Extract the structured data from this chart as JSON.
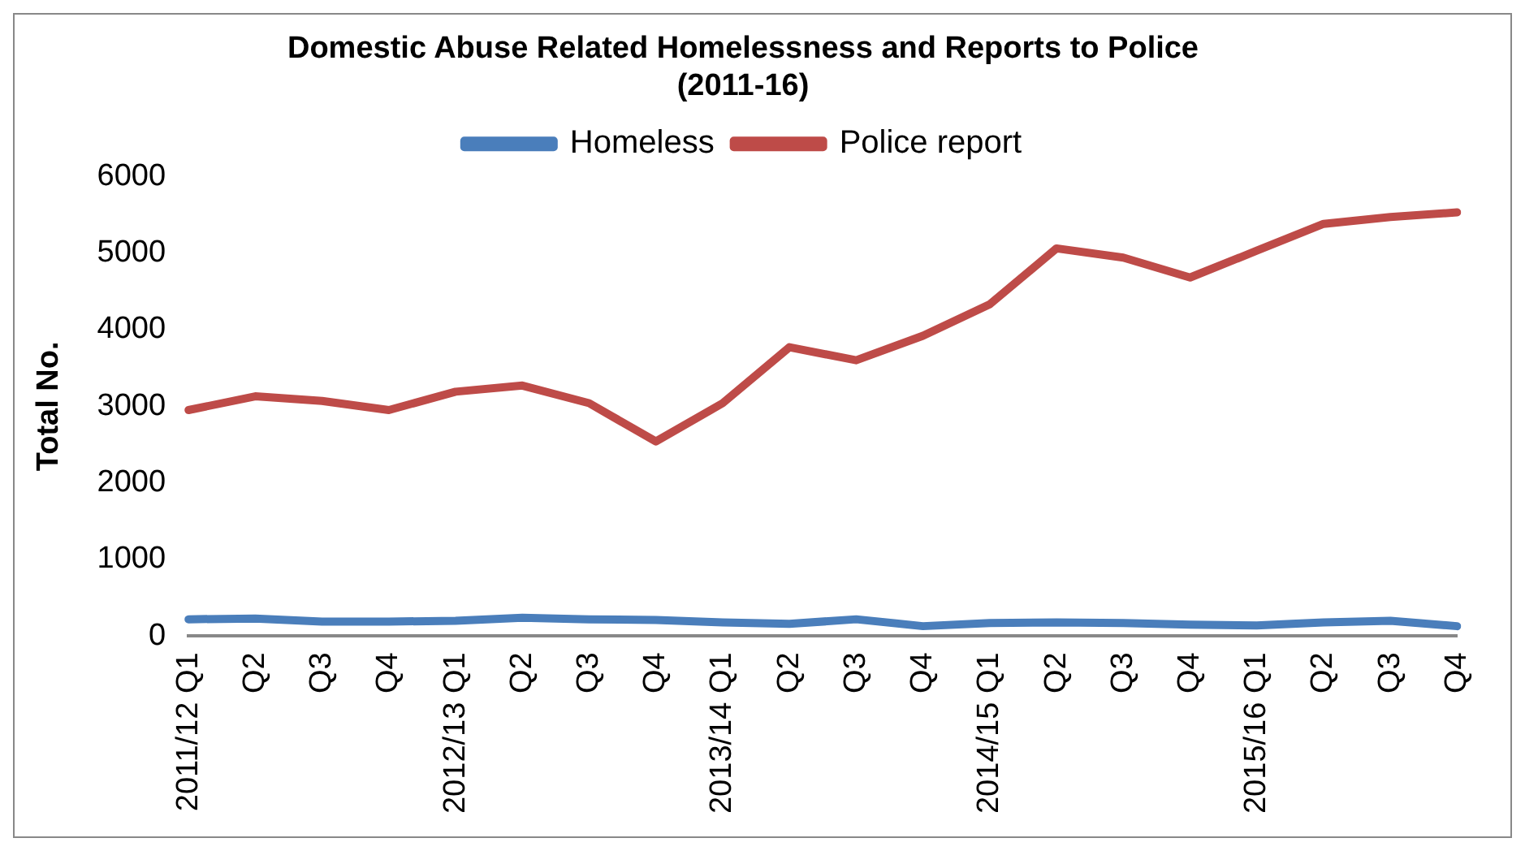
{
  "chart_data": {
    "type": "line",
    "title": [
      "Domestic Abuse Related Homelessness and Reports to Police",
      "(2011-16)"
    ],
    "ylabel": "Total No.",
    "categories": [
      "2011/12 Q1",
      "Q2",
      "Q3",
      "Q4",
      "2012/13 Q1",
      "Q2",
      "Q3",
      "Q4",
      "2013/14 Q1",
      "Q2",
      "Q3",
      "Q4",
      "2014/15 Q1",
      "Q2",
      "Q3",
      "Q4",
      "2015/16 Q1",
      "Q2",
      "Q3",
      "Q4"
    ],
    "series": [
      {
        "name": "Homeless",
        "color": "#4a7ebb",
        "values": [
          220,
          230,
          190,
          190,
          200,
          240,
          220,
          210,
          180,
          160,
          220,
          130,
          170,
          180,
          170,
          150,
          140,
          180,
          200,
          130
        ]
      },
      {
        "name": "Police report",
        "color": "#be4b48",
        "values": [
          2950,
          3130,
          3070,
          2950,
          3190,
          3270,
          3040,
          2540,
          3040,
          3770,
          3600,
          3920,
          4330,
          5060,
          4940,
          4680,
          5030,
          5380,
          5470,
          5530
        ]
      }
    ],
    "ylim": [
      0,
      6000
    ],
    "yticks": [
      0,
      1000,
      2000,
      3000,
      4000,
      5000,
      6000
    ],
    "grid": false,
    "legend": "top",
    "marker": "none",
    "line_style": "solid"
  }
}
